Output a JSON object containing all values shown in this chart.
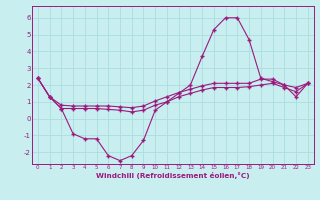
{
  "xlabel": "Windchill (Refroidissement éolien,°C)",
  "xlim": [
    -0.5,
    23.5
  ],
  "ylim": [
    -2.7,
    6.7
  ],
  "yticks": [
    -2,
    -1,
    0,
    1,
    2,
    3,
    4,
    5,
    6
  ],
  "xticks": [
    0,
    1,
    2,
    3,
    4,
    5,
    6,
    7,
    8,
    9,
    10,
    11,
    12,
    13,
    14,
    15,
    16,
    17,
    18,
    19,
    20,
    21,
    22,
    23
  ],
  "bg_color": "#c8eef0",
  "line_color": "#9b1a7e",
  "grid_color": "#aadde0",
  "line1_x": [
    0,
    1,
    2,
    3,
    4,
    5,
    6,
    7,
    8,
    9,
    10,
    11,
    12,
    13,
    14,
    15,
    16,
    17,
    18,
    19,
    20,
    21,
    22,
    23
  ],
  "line1_y": [
    2.4,
    1.3,
    0.6,
    -0.9,
    -1.2,
    -1.2,
    -2.2,
    -2.5,
    -2.2,
    -1.3,
    0.5,
    1.0,
    1.5,
    2.0,
    3.7,
    5.3,
    6.0,
    6.0,
    4.7,
    2.4,
    2.2,
    2.0,
    1.3,
    2.1
  ],
  "line2_x": [
    0,
    1,
    2,
    3,
    4,
    5,
    6,
    7,
    8,
    9,
    10,
    11,
    12,
    13,
    14,
    15,
    16,
    17,
    18,
    19,
    20,
    21,
    22,
    23
  ],
  "line2_y": [
    2.4,
    1.3,
    0.8,
    0.75,
    0.75,
    0.75,
    0.75,
    0.7,
    0.65,
    0.75,
    1.05,
    1.3,
    1.55,
    1.75,
    1.95,
    2.1,
    2.1,
    2.1,
    2.1,
    2.35,
    2.35,
    2.0,
    1.85,
    2.1
  ],
  "line3_x": [
    0,
    1,
    2,
    3,
    4,
    5,
    6,
    7,
    8,
    9,
    10,
    11,
    12,
    13,
    14,
    15,
    16,
    17,
    18,
    19,
    20,
    21,
    22,
    23
  ],
  "line3_y": [
    2.4,
    1.3,
    0.6,
    0.6,
    0.6,
    0.6,
    0.55,
    0.5,
    0.4,
    0.5,
    0.8,
    1.0,
    1.3,
    1.5,
    1.7,
    1.85,
    1.85,
    1.85,
    1.9,
    2.0,
    2.1,
    1.85,
    1.6,
    2.1
  ]
}
